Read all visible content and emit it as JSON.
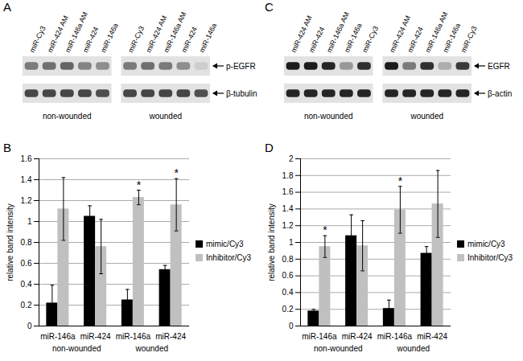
{
  "chart_data": [
    {
      "type": "blot",
      "panel": "A",
      "groups": [
        {
          "name": "non-wounded",
          "lanes": [
            "miR-Cy3",
            "miR-424 AM",
            "miR-146a AM",
            "miR-424",
            "miR-146a"
          ]
        },
        {
          "name": "wounded",
          "lanes": [
            "miR-Cy3",
            "miR-424 AM",
            "miR-146a AM",
            "miR-424",
            "miR-146a"
          ]
        }
      ],
      "bands": [
        {
          "name": "p-EGFR",
          "intensity": [
            0.5,
            0.55,
            0.6,
            0.45,
            0.4,
            0.5,
            0.55,
            0.5,
            0.4,
            0.1
          ]
        },
        {
          "name": "β-tubulin",
          "intensity": [
            0.75,
            0.75,
            0.75,
            0.75,
            0.7,
            0.75,
            0.75,
            0.75,
            0.75,
            0.7
          ]
        }
      ]
    },
    {
      "type": "bar",
      "panel": "B",
      "ylabel": "relative band intensity",
      "categories": [
        "miR-146a",
        "miR-424",
        "miR-146a",
        "miR-424"
      ],
      "groups": [
        {
          "name": "non-wounded",
          "span": 2
        },
        {
          "name": "wounded",
          "span": 2
        }
      ],
      "series": [
        {
          "name": "mimic/Cy3",
          "color": "#000000",
          "values": [
            0.22,
            1.05,
            0.25,
            0.54
          ],
          "errors": [
            0.17,
            0.1,
            0.1,
            0.04
          ]
        },
        {
          "name": "Inhibitor/Cy3",
          "color": "#c0c0c0",
          "values": [
            1.12,
            0.76,
            1.23,
            1.16
          ],
          "errors": [
            0.3,
            0.26,
            0.07,
            0.25
          ]
        }
      ],
      "annotations": [
        {
          "text": "*",
          "series": "Inhibitor/Cy3",
          "index": 2
        },
        {
          "text": "*",
          "series": "Inhibitor/Cy3",
          "index": 3
        }
      ],
      "ylim": [
        0,
        1.6
      ],
      "yticks": [
        0,
        0.2,
        0.4,
        0.6,
        0.8,
        1,
        1.2,
        1.4,
        1.6
      ],
      "grid": true,
      "legend": "right"
    },
    {
      "type": "blot",
      "panel": "C",
      "groups": [
        {
          "name": "non-wounded",
          "lanes": [
            "miR-424 AM",
            "miR-424",
            "miR-146a AM",
            "miR-146a",
            "miR-Cy3"
          ]
        },
        {
          "name": "wounded",
          "lanes": [
            "miR-424 AM",
            "miR-424",
            "miR-146a AM",
            "miR-146a",
            "miR-Cy3"
          ]
        }
      ],
      "bands": [
        {
          "name": "EGFR",
          "intensity": [
            0.95,
            0.95,
            0.9,
            0.35,
            0.85,
            0.95,
            0.5,
            0.85,
            0.25,
            0.8
          ]
        },
        {
          "name": "β-actin",
          "intensity": [
            0.9,
            0.9,
            0.9,
            0.9,
            0.9,
            0.9,
            0.9,
            0.9,
            0.9,
            0.9
          ]
        }
      ]
    },
    {
      "type": "bar",
      "panel": "D",
      "ylabel": "relative band intensity",
      "categories": [
        "miR-146a",
        "miR-424",
        "miR-146a",
        "miR-424"
      ],
      "groups": [
        {
          "name": "non-wounded",
          "span": 2
        },
        {
          "name": "wounded",
          "span": 2
        }
      ],
      "series": [
        {
          "name": "mimic/Cy3",
          "color": "#000000",
          "values": [
            0.18,
            1.08,
            0.21,
            0.87
          ],
          "errors": [
            0.02,
            0.25,
            0.1,
            0.08
          ]
        },
        {
          "name": "Inhibitor/Cy3",
          "color": "#c0c0c0",
          "values": [
            0.95,
            0.96,
            1.39,
            1.46
          ],
          "errors": [
            0.13,
            0.3,
            0.28,
            0.4
          ]
        }
      ],
      "annotations": [
        {
          "text": "*",
          "series": "Inhibitor/Cy3",
          "index": 0
        },
        {
          "text": "*",
          "series": "Inhibitor/Cy3",
          "index": 2
        }
      ],
      "ylim": [
        0,
        2
      ],
      "yticks": [
        0,
        0.2,
        0.4,
        0.6,
        0.8,
        1,
        1.2,
        1.4,
        1.6,
        1.8,
        2
      ],
      "grid": true,
      "legend": "right"
    }
  ]
}
